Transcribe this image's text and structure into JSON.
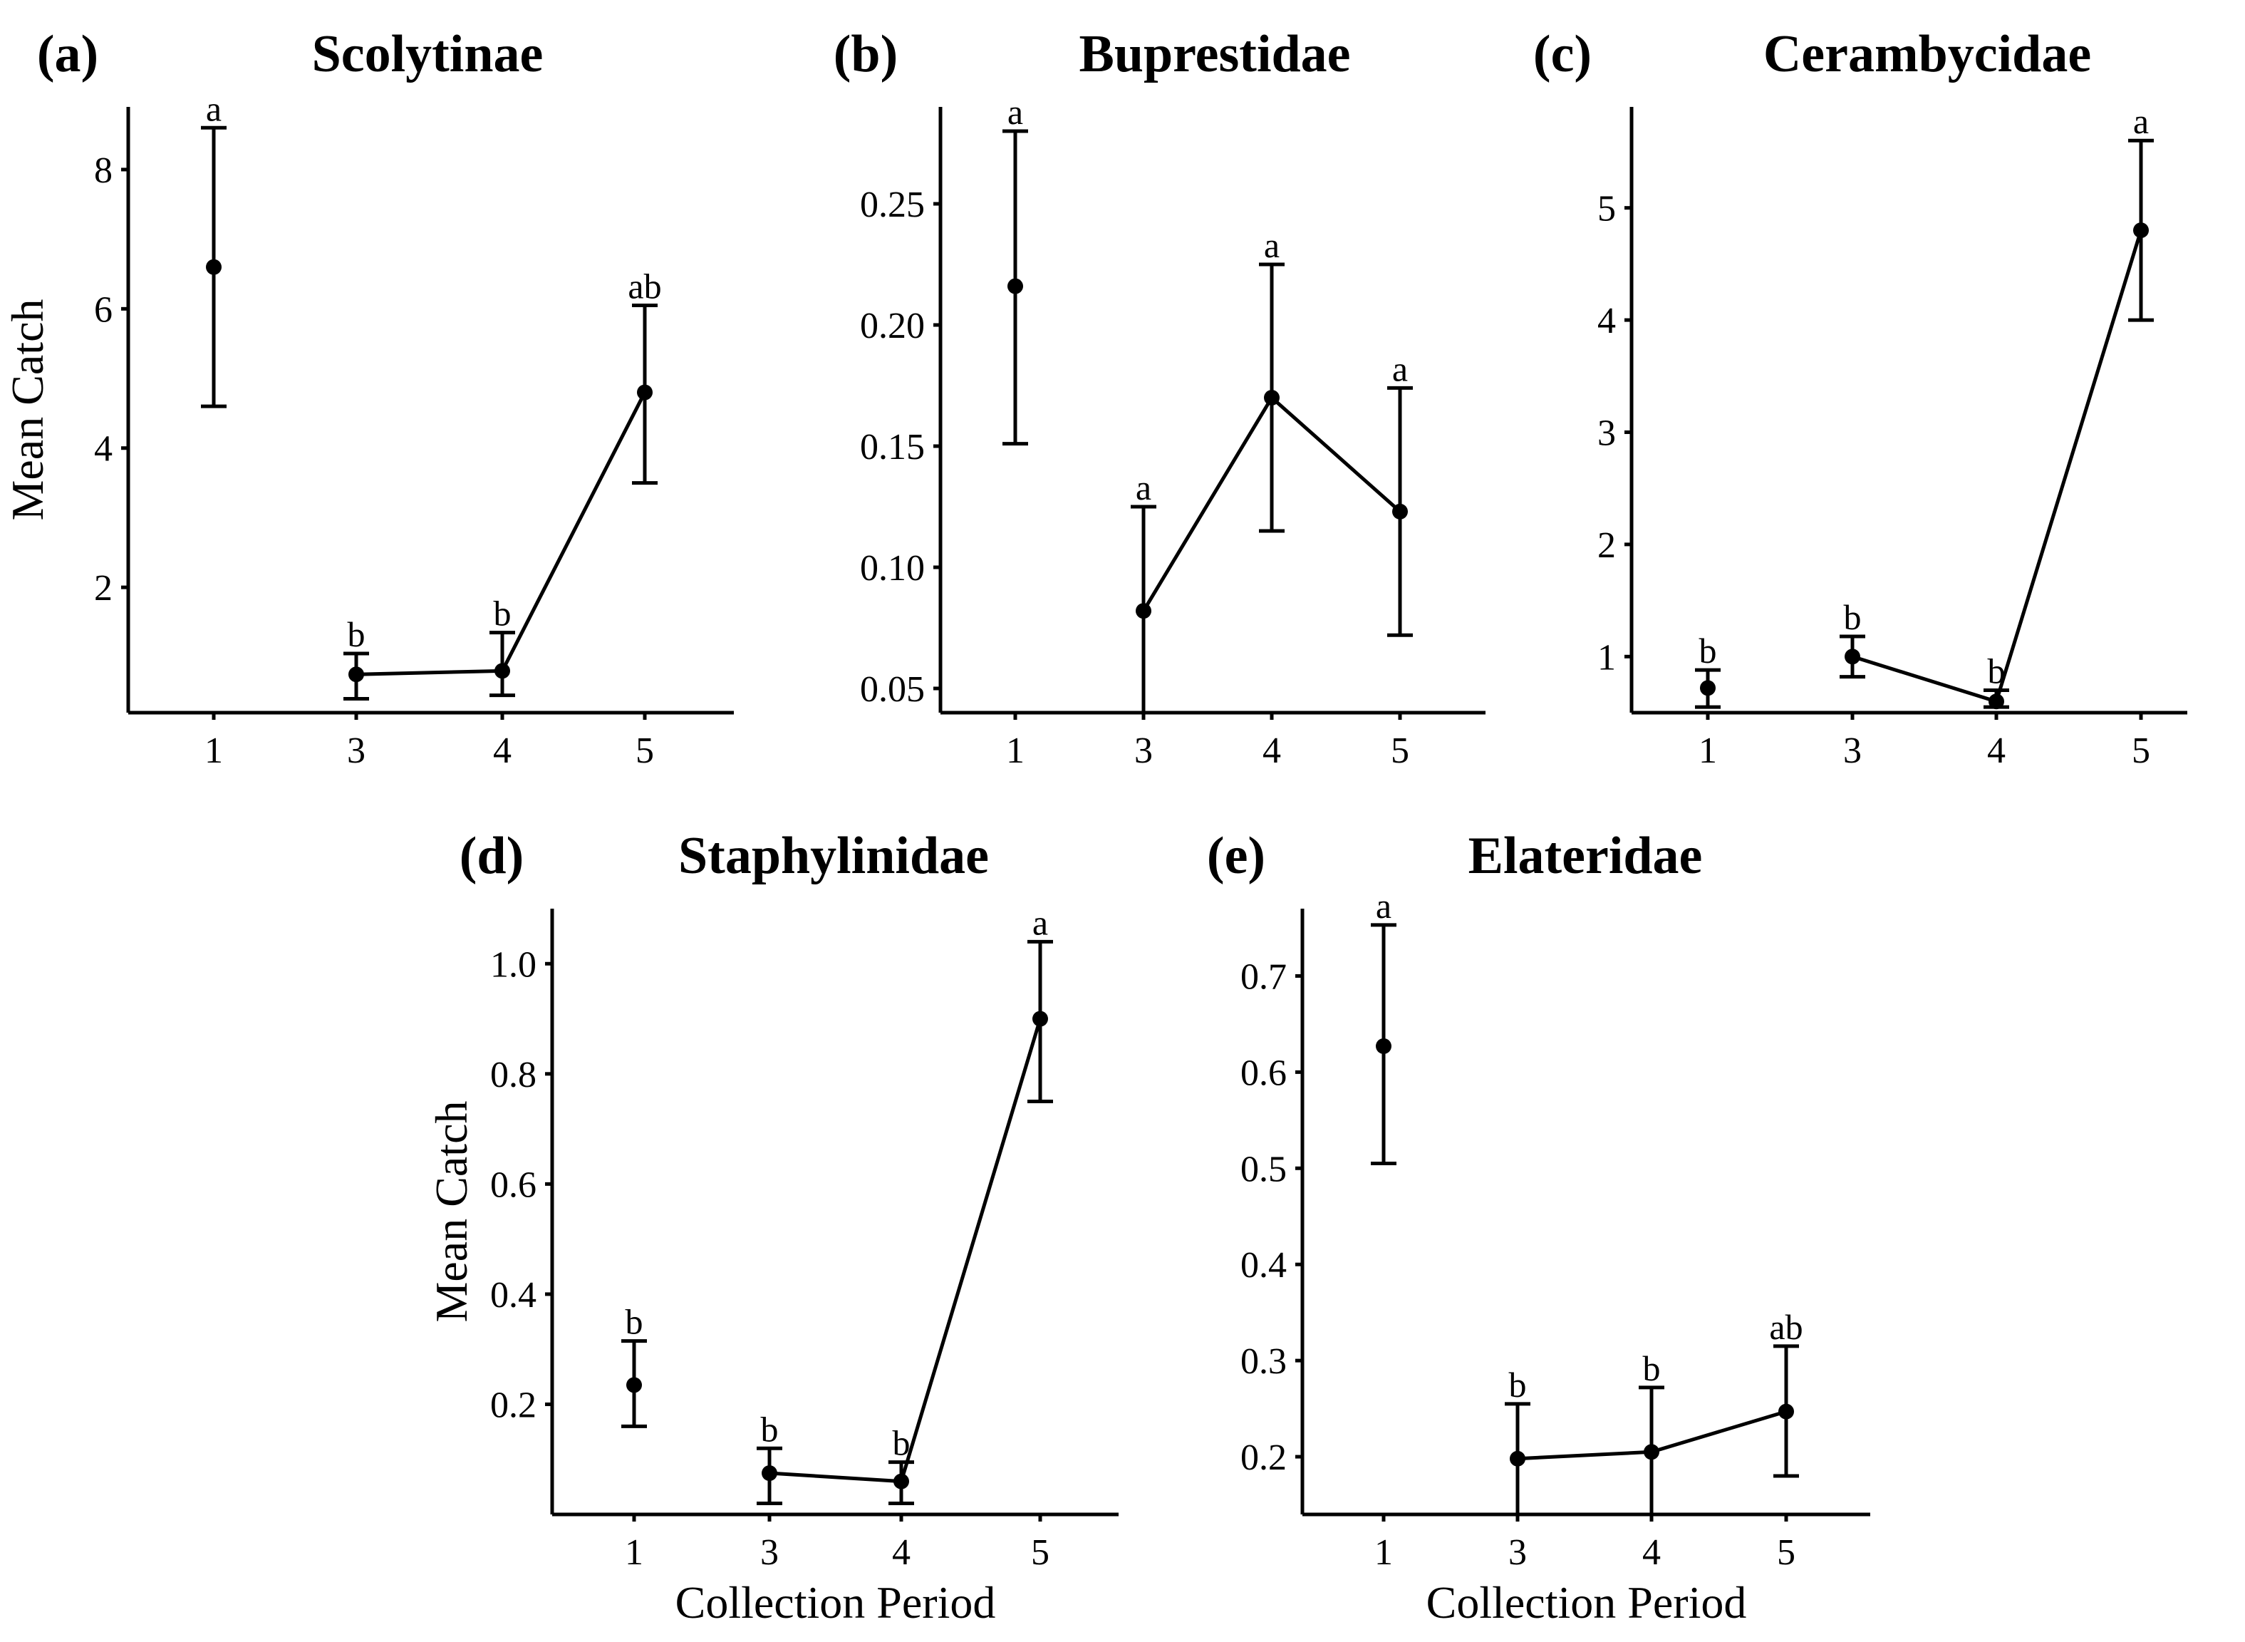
{
  "figure": {
    "xlabel": "Collection Period",
    "ylabel": "Mean Catch"
  },
  "chart_data": [
    {
      "type": "line",
      "id": "a",
      "letter": "(a)",
      "title": "Scolytinae",
      "categories": [
        "1",
        "3",
        "4",
        "5"
      ],
      "ylim": [
        0.2,
        8.9
      ],
      "yticks": [
        2,
        4,
        6,
        8
      ],
      "yticklabels": [
        "2",
        "4",
        "6",
        "8"
      ],
      "values": [
        6.6,
        0.75,
        0.8,
        4.8
      ],
      "err_low": [
        4.6,
        0.4,
        0.45,
        3.5
      ],
      "err_high": [
        8.6,
        1.05,
        1.35,
        6.05
      ],
      "sig": [
        "a",
        "b",
        "b",
        "ab"
      ],
      "connected": [
        false,
        true,
        true,
        true
      ],
      "show_ylabel": true,
      "show_xlabel": false
    },
    {
      "type": "line",
      "id": "b",
      "letter": "(b)",
      "title": "Buprestidae",
      "categories": [
        "1",
        "3",
        "4",
        "5"
      ],
      "ylim": [
        0.04,
        0.29
      ],
      "yticks": [
        0.05,
        0.1,
        0.15,
        0.2,
        0.25
      ],
      "yticklabels": [
        "0.05",
        "0.10",
        "0.15",
        "0.20",
        "0.25"
      ],
      "values": [
        0.216,
        0.082,
        0.17,
        0.123
      ],
      "err_low": [
        0.151,
        0.04,
        0.115,
        0.072
      ],
      "err_high": [
        0.28,
        0.125,
        0.225,
        0.174
      ],
      "sig": [
        "a",
        "a",
        "a",
        "a"
      ],
      "connected": [
        false,
        true,
        true,
        true
      ],
      "show_ylabel": false,
      "show_xlabel": false
    },
    {
      "type": "line",
      "id": "c",
      "letter": "(c)",
      "title": "Cerambycidae",
      "categories": [
        "1",
        "3",
        "4",
        "5"
      ],
      "ylim": [
        0.5,
        5.9
      ],
      "yticks": [
        1,
        2,
        3,
        4,
        5
      ],
      "yticklabels": [
        "1",
        "2",
        "3",
        "4",
        "5"
      ],
      "values": [
        0.72,
        1.0,
        0.6,
        4.8
      ],
      "err_low": [
        0.55,
        0.82,
        0.55,
        4.0
      ],
      "err_high": [
        0.88,
        1.18,
        0.7,
        5.6
      ],
      "sig": [
        "b",
        "b",
        "b",
        "a"
      ],
      "connected": [
        false,
        true,
        true,
        true
      ],
      "show_ylabel": false,
      "show_xlabel": false
    },
    {
      "type": "line",
      "id": "d",
      "letter": "(d)",
      "title": "Staphylinidae",
      "categories": [
        "1",
        "3",
        "4",
        "5"
      ],
      "ylim": [
        0.0,
        1.1
      ],
      "yticks": [
        0.2,
        0.4,
        0.6,
        0.8,
        1.0
      ],
      "yticklabels": [
        "0.2",
        "0.4",
        "0.6",
        "0.8",
        "1.0"
      ],
      "values": [
        0.235,
        0.075,
        0.06,
        0.9
      ],
      "err_low": [
        0.16,
        0.02,
        0.02,
        0.75
      ],
      "err_high": [
        0.315,
        0.12,
        0.095,
        1.04
      ],
      "sig": [
        "b",
        "b",
        "b",
        "a"
      ],
      "connected": [
        false,
        true,
        true,
        true
      ],
      "show_ylabel": true,
      "show_xlabel": true
    },
    {
      "type": "line",
      "id": "e",
      "letter": "(e)",
      "title": "Elateridae",
      "categories": [
        "1",
        "3",
        "4",
        "5"
      ],
      "ylim": [
        0.14,
        0.77
      ],
      "yticks": [
        0.2,
        0.3,
        0.4,
        0.5,
        0.6,
        0.7
      ],
      "yticklabels": [
        "0.2",
        "0.3",
        "0.4",
        "0.5",
        "0.6",
        "0.7"
      ],
      "values": [
        0.627,
        0.198,
        0.205,
        0.247
      ],
      "err_low": [
        0.505,
        0.14,
        0.14,
        0.18
      ],
      "err_high": [
        0.753,
        0.255,
        0.272,
        0.315
      ],
      "sig": [
        "a",
        "b",
        "b",
        "ab"
      ],
      "connected": [
        false,
        true,
        true,
        true
      ],
      "show_ylabel": false,
      "show_xlabel": true
    }
  ]
}
